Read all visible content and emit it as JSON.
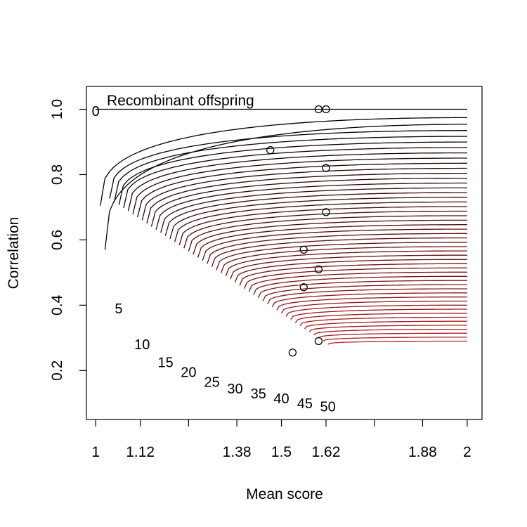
{
  "chart_data": {
    "type": "line",
    "title": "",
    "xlabel": "Mean score",
    "ylabel": "Correlation",
    "xlim": [
      0.975,
      2.04
    ],
    "ylim": [
      0.05,
      1.07
    ],
    "x_ticks": [
      {
        "value": 1,
        "label": "1"
      },
      {
        "value": 1.12,
        "label": "1.12"
      },
      {
        "value": 1.25,
        "label": ""
      },
      {
        "value": 1.38,
        "label": "1.38"
      },
      {
        "value": 1.5,
        "label": "1.5"
      },
      {
        "value": 1.62,
        "label": "1.62"
      },
      {
        "value": 1.75,
        "label": ""
      },
      {
        "value": 1.88,
        "label": "1.88"
      },
      {
        "value": 2,
        "label": "2"
      }
    ],
    "y_ticks": [
      {
        "value": 0.2,
        "label": "0.2"
      },
      {
        "value": 0.4,
        "label": "0.4"
      },
      {
        "value": 0.6,
        "label": "0.6"
      },
      {
        "value": 0.8,
        "label": "0.8"
      },
      {
        "value": 1.0,
        "label": "1.0"
      }
    ],
    "annotation": "Recombinant offspring",
    "curves": {
      "count": 51,
      "x_end": 2,
      "y_at_end_first": 1.0,
      "y_at_end_last": 0.29,
      "color_start": "#000000",
      "color_end": "#b22222"
    },
    "curve_labels": [
      {
        "value": 0,
        "text": "0",
        "x": 1.0,
        "y": 0.995
      },
      {
        "value": 5,
        "text": "5",
        "x": 1.062,
        "y": 0.39
      },
      {
        "value": 10,
        "text": "10",
        "x": 1.125,
        "y": 0.28
      },
      {
        "value": 15,
        "text": "15",
        "x": 1.188,
        "y": 0.225
      },
      {
        "value": 20,
        "text": "20",
        "x": 1.25,
        "y": 0.195
      },
      {
        "value": 25,
        "text": "25",
        "x": 1.313,
        "y": 0.165
      },
      {
        "value": 30,
        "text": "30",
        "x": 1.375,
        "y": 0.145
      },
      {
        "value": 35,
        "text": "35",
        "x": 1.438,
        "y": 0.13
      },
      {
        "value": 40,
        "text": "40",
        "x": 1.5,
        "y": 0.115
      },
      {
        "value": 45,
        "text": "45",
        "x": 1.563,
        "y": 0.1
      },
      {
        "value": 50,
        "text": "50",
        "x": 1.625,
        "y": 0.09
      }
    ],
    "points": [
      {
        "x": 1.6,
        "y": 1.0
      },
      {
        "x": 1.62,
        "y": 1.0
      },
      {
        "x": 1.47,
        "y": 0.875
      },
      {
        "x": 1.62,
        "y": 0.82
      },
      {
        "x": 1.62,
        "y": 0.685
      },
      {
        "x": 1.56,
        "y": 0.57
      },
      {
        "x": 1.6,
        "y": 0.51
      },
      {
        "x": 1.56,
        "y": 0.455
      },
      {
        "x": 1.6,
        "y": 0.29
      },
      {
        "x": 1.53,
        "y": 0.255
      }
    ]
  }
}
